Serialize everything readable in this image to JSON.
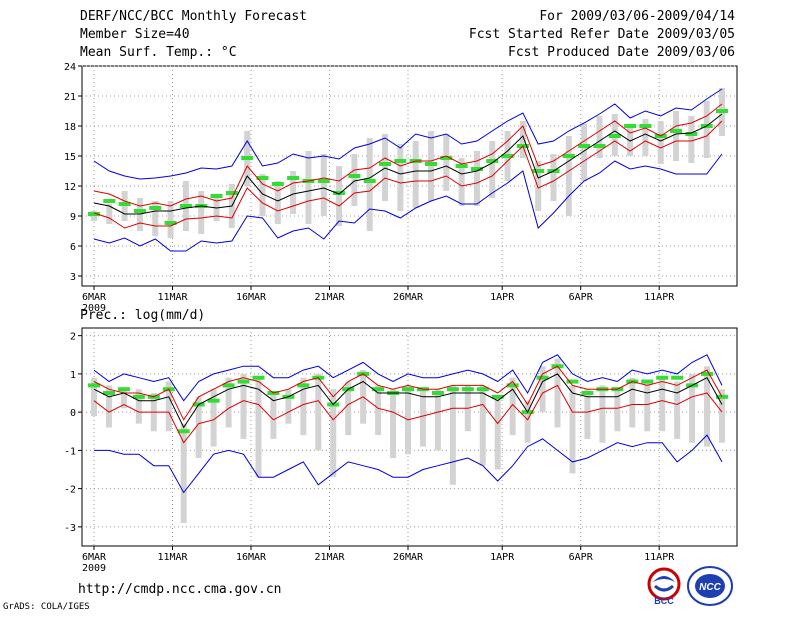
{
  "header": {
    "title": "DERF/NCC/BCC Monthly Forecast",
    "member": "Member Size=40",
    "var1": "Mean Surf. Temp.: °C",
    "period": "For 2009/03/06-2009/04/14",
    "refer": "Fcst Started Refer Date 2009/03/05",
    "produced": "Fcst Produced Date 2009/03/06"
  },
  "footer": {
    "url": "http://cmdp.ncc.cma.gov.cn",
    "grads": "GrADS: COLA/IGES"
  },
  "logos": {
    "bcc": "BCC",
    "ncc": "NCC"
  },
  "colors": {
    "ensemble_mean": "#000000",
    "spread_inner": "#dd0000",
    "spread_outer": "#0000dd",
    "member_box": "#d3d3d3",
    "median": "#33dd33"
  },
  "chart_data": [
    {
      "type": "line",
      "title": "Mean Surf. Temp.: °C",
      "x_tick_labels": [
        "6MAR",
        "11MAR",
        "16MAR",
        "21MAR",
        "26MAR",
        "1APR",
        "6APR",
        "11APR"
      ],
      "x_tick_days": [
        1,
        6,
        11,
        16,
        21,
        27,
        32,
        37
      ],
      "year_label": "2009",
      "days": 40,
      "ylim": [
        2,
        24
      ],
      "yticks": [
        3,
        6,
        9,
        12,
        15,
        18,
        21,
        24
      ],
      "series": [
        {
          "name": "upper-blue",
          "values": [
            14.5,
            13.5,
            13.0,
            12.7,
            12.8,
            13.0,
            13.3,
            13.8,
            13.7,
            14.0,
            16.5,
            14.0,
            14.3,
            15.2,
            14.8,
            15.0,
            14.7,
            15.8,
            16.2,
            16.8,
            15.8,
            17.2,
            16.8,
            17.2,
            16.2,
            16.5,
            17.5,
            18.5,
            19.3,
            16.2,
            16.5,
            17.5,
            18.3,
            19.2,
            20.2,
            18.8,
            19.5,
            19.0,
            19.8,
            19.6,
            20.7,
            21.7
          ]
        },
        {
          "name": "upper-red",
          "values": [
            11.5,
            11.2,
            10.5,
            10.0,
            10.3,
            10.0,
            10.7,
            11.0,
            10.5,
            10.8,
            14.0,
            12.2,
            11.5,
            12.3,
            12.5,
            12.8,
            12.5,
            13.6,
            13.8,
            14.8,
            14.0,
            14.5,
            14.5,
            15.0,
            14.2,
            14.5,
            15.2,
            16.5,
            18.0,
            14.0,
            14.5,
            15.5,
            16.5,
            17.5,
            18.5,
            17.3,
            17.8,
            17.0,
            18.0,
            18.3,
            19.0,
            20.2
          ]
        },
        {
          "name": "ensemble-mean",
          "values": [
            10.3,
            10.0,
            9.2,
            9.2,
            9.5,
            9.5,
            9.8,
            10.0,
            9.8,
            10.0,
            13.0,
            11.2,
            10.5,
            11.2,
            11.5,
            11.8,
            11.2,
            12.5,
            12.8,
            13.8,
            13.2,
            13.5,
            13.5,
            14.0,
            13.2,
            13.5,
            14.3,
            15.5,
            17.0,
            12.8,
            13.5,
            14.5,
            15.5,
            16.5,
            17.5,
            16.5,
            17.2,
            16.5,
            17.2,
            17.3,
            18.0,
            19.2
          ]
        },
        {
          "name": "lower-red",
          "values": [
            9.3,
            8.8,
            7.8,
            8.3,
            8.0,
            8.0,
            8.7,
            8.8,
            9.0,
            8.8,
            11.8,
            10.3,
            9.5,
            10.0,
            10.5,
            10.8,
            10.0,
            11.3,
            11.5,
            12.8,
            12.3,
            12.5,
            12.5,
            13.0,
            12.0,
            12.3,
            13.0,
            14.5,
            16.0,
            11.8,
            12.5,
            13.5,
            14.5,
            15.5,
            16.5,
            15.5,
            16.5,
            15.8,
            16.5,
            16.5,
            17.0,
            18.5
          ]
        },
        {
          "name": "lower-blue",
          "values": [
            6.7,
            6.3,
            6.8,
            6.0,
            6.7,
            5.5,
            5.5,
            6.5,
            6.3,
            6.5,
            9.0,
            8.8,
            6.8,
            7.5,
            7.8,
            6.7,
            8.5,
            8.3,
            9.7,
            9.5,
            8.8,
            9.8,
            10.5,
            11.0,
            10.2,
            10.2,
            11.3,
            12.3,
            13.5,
            7.8,
            9.3,
            11.0,
            12.5,
            13.3,
            14.5,
            13.7,
            14.0,
            13.7,
            13.2,
            13.2,
            13.2,
            15.2
          ]
        }
      ],
      "box_low": [
        8.5,
        8.2,
        8.5,
        7.5,
        7.0,
        6.8,
        7.5,
        7.2,
        8.5,
        7.8,
        12.0,
        9.0,
        8.2,
        9.2,
        8.2,
        9.0,
        8.0,
        10.0,
        7.5,
        10.5,
        9.5,
        9.8,
        10.5,
        11.5,
        10.0,
        10.0,
        10.8,
        12.5,
        14.8,
        9.5,
        10.5,
        9.0,
        12.5,
        14.8,
        15.0,
        15.0,
        15.0,
        14.2,
        14.5,
        14.3,
        14.8,
        17.0
      ],
      "box_high": [
        9.5,
        10.2,
        11.5,
        10.8,
        10.5,
        10.5,
        12.5,
        11.5,
        11.2,
        12.2,
        17.5,
        13.2,
        12.5,
        13.5,
        15.5,
        15.2,
        14.0,
        15.2,
        16.8,
        17.2,
        16.2,
        16.5,
        17.5,
        17.2,
        14.8,
        15.5,
        16.5,
        17.5,
        18.5,
        14.5,
        15.2,
        17.0,
        18.2,
        19.0,
        19.2,
        18.2,
        18.7,
        18.5,
        19.5,
        19.0,
        20.5,
        21.8
      ],
      "median": [
        9.2,
        10.5,
        10.2,
        9.5,
        9.8,
        8.3,
        10.0,
        10.0,
        11.0,
        11.3,
        14.8,
        12.8,
        12.2,
        12.8,
        12.5,
        12.5,
        11.3,
        13.0,
        12.5,
        14.2,
        14.5,
        14.5,
        14.2,
        14.8,
        14.0,
        13.7,
        14.5,
        15.0,
        16.0,
        13.5,
        13.5,
        15.0,
        16.0,
        16.0,
        17.0,
        18.0,
        18.0,
        17.0,
        17.5,
        17.2,
        18.0,
        19.5
      ]
    },
    {
      "type": "line",
      "title": "Prec.: log(mm/d)",
      "x_tick_labels": [
        "6MAR",
        "11MAR",
        "16MAR",
        "21MAR",
        "26MAR",
        "1APR",
        "6APR",
        "11APR"
      ],
      "x_tick_days": [
        1,
        6,
        11,
        16,
        21,
        27,
        32,
        37
      ],
      "year_label": "2009",
      "days": 40,
      "ylim": [
        -3.5,
        2.2
      ],
      "yticks": [
        -3,
        -2,
        -1,
        0,
        1,
        2
      ],
      "series": [
        {
          "name": "upper-blue",
          "values": [
            1.1,
            0.8,
            1.0,
            0.9,
            0.8,
            0.9,
            0.3,
            0.8,
            1.0,
            1.1,
            1.2,
            1.2,
            0.9,
            0.9,
            1.1,
            1.2,
            0.9,
            1.1,
            1.3,
            1.0,
            0.8,
            1.0,
            0.9,
            0.9,
            1.0,
            1.1,
            1.0,
            0.8,
            1.1,
            0.5,
            1.3,
            1.5,
            1.0,
            0.8,
            0.9,
            0.8,
            1.1,
            1.0,
            1.1,
            1.0,
            1.3,
            1.5,
            0.7
          ]
        },
        {
          "name": "upper-red",
          "values": [
            0.8,
            0.6,
            0.5,
            0.5,
            0.4,
            0.6,
            -0.2,
            0.4,
            0.6,
            0.8,
            0.9,
            0.8,
            0.5,
            0.6,
            0.8,
            0.9,
            0.4,
            0.8,
            1.0,
            0.7,
            0.6,
            0.7,
            0.6,
            0.6,
            0.7,
            0.7,
            0.7,
            0.5,
            0.8,
            0.2,
            1.0,
            1.2,
            0.7,
            0.6,
            0.6,
            0.6,
            0.8,
            0.7,
            0.8,
            0.7,
            0.9,
            1.1,
            0.4
          ]
        },
        {
          "name": "ensemble-mean",
          "values": [
            0.6,
            0.4,
            0.5,
            0.3,
            0.3,
            0.4,
            -0.4,
            0.2,
            0.4,
            0.6,
            0.7,
            0.6,
            0.3,
            0.4,
            0.6,
            0.7,
            0.2,
            0.6,
            0.8,
            0.5,
            0.5,
            0.5,
            0.4,
            0.4,
            0.5,
            0.5,
            0.5,
            0.3,
            0.6,
            0.0,
            0.8,
            1.0,
            0.5,
            0.4,
            0.4,
            0.4,
            0.6,
            0.5,
            0.6,
            0.5,
            0.7,
            0.9,
            0.2
          ]
        },
        {
          "name": "lower-red",
          "values": [
            0.3,
            0.0,
            0.2,
            0.0,
            0.0,
            0.0,
            -0.8,
            -0.3,
            -0.2,
            0.1,
            0.3,
            0.2,
            -0.2,
            0.0,
            0.2,
            0.3,
            -0.2,
            0.2,
            0.4,
            0.1,
            0.0,
            -0.2,
            -0.1,
            0.0,
            0.1,
            0.1,
            0.2,
            -0.3,
            0.2,
            -0.2,
            0.5,
            0.7,
            0.0,
            0.0,
            0.1,
            0.1,
            0.2,
            0.2,
            0.3,
            0.2,
            0.4,
            0.5,
            0.0
          ]
        },
        {
          "name": "lower-blue",
          "values": [
            -1.0,
            -1.0,
            -1.1,
            -1.1,
            -1.4,
            -1.4,
            -2.1,
            -1.6,
            -1.1,
            -1.0,
            -1.1,
            -1.7,
            -1.7,
            -1.5,
            -1.3,
            -1.9,
            -1.6,
            -1.3,
            -1.4,
            -1.5,
            -1.7,
            -1.7,
            -1.5,
            -1.4,
            -1.3,
            -1.2,
            -1.4,
            -1.8,
            -1.4,
            -0.9,
            -0.7,
            -1.0,
            -1.3,
            -1.2,
            -1.0,
            -0.8,
            -0.9,
            -0.8,
            -0.8,
            -1.3,
            -1.0,
            -0.6,
            -1.3
          ]
        }
      ],
      "box_low": [
        -0.1,
        -0.4,
        0.1,
        -0.3,
        -0.5,
        -0.5,
        -2.9,
        -1.2,
        -0.9,
        -0.4,
        -0.7,
        -1.7,
        -0.7,
        -0.3,
        -0.6,
        -1.0,
        -1.7,
        -0.6,
        -0.3,
        -0.6,
        -1.2,
        -1.1,
        -0.9,
        -1.0,
        -1.9,
        -0.5,
        -1.4,
        -1.5,
        -0.6,
        -0.8,
        0.0,
        -0.4,
        -1.6,
        -0.7,
        -0.8,
        -0.5,
        -0.4,
        -0.5,
        -0.5,
        -0.7,
        -0.8,
        -0.9,
        -0.8
      ],
      "box_high": [
        0.9,
        0.7,
        0.6,
        0.6,
        0.5,
        0.8,
        -0.3,
        0.4,
        0.6,
        0.9,
        1.0,
        0.9,
        0.5,
        0.6,
        0.9,
        1.0,
        0.6,
        0.8,
        1.1,
        0.7,
        0.6,
        0.7,
        0.6,
        0.6,
        0.7,
        0.7,
        0.7,
        0.4,
        0.9,
        0.3,
        1.2,
        1.4,
        0.7,
        0.6,
        0.7,
        0.6,
        0.9,
        0.8,
        0.9,
        0.8,
        1.0,
        1.2,
        0.6
      ],
      "median": [
        0.7,
        0.5,
        0.6,
        0.4,
        0.4,
        0.6,
        -0.5,
        0.2,
        0.3,
        0.7,
        0.8,
        0.9,
        0.5,
        0.4,
        0.7,
        0.9,
        0.2,
        0.6,
        1.0,
        0.6,
        0.5,
        0.6,
        0.6,
        0.5,
        0.6,
        0.6,
        0.6,
        0.4,
        0.7,
        0.0,
        0.9,
        1.2,
        0.8,
        0.5,
        0.6,
        0.6,
        0.8,
        0.8,
        0.9,
        0.9,
        0.7,
        1.0,
        0.4
      ]
    }
  ]
}
